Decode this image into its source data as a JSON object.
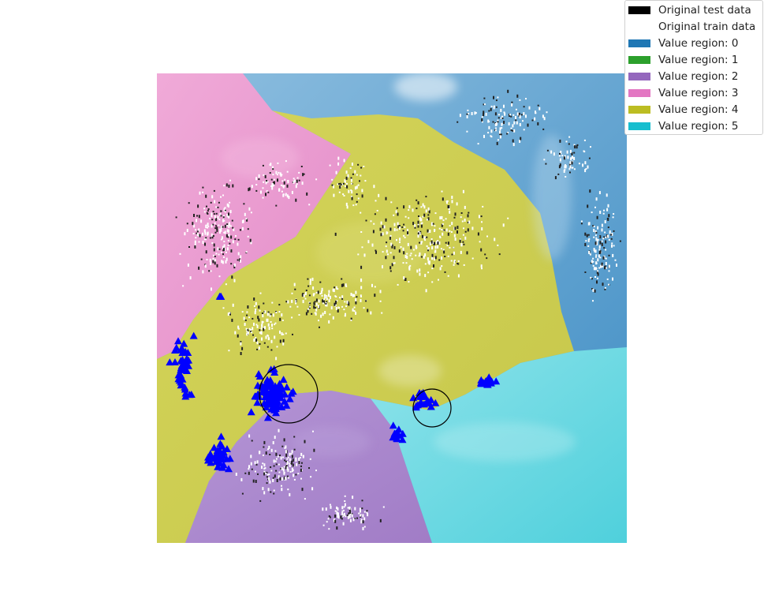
{
  "chart_data": {
    "type": "scatter",
    "title": "",
    "xlabel": "",
    "ylabel": "",
    "grid": false,
    "axes_visible": false,
    "legend_position": "top-right",
    "legend": [
      {
        "label": "Original test data",
        "color": "#000000"
      },
      {
        "label": "Original train data",
        "color": "#ffffff"
      },
      {
        "label": "Value region: 0",
        "color": "#1f77b4"
      },
      {
        "label": "Value region: 1",
        "color": "#2ca02c"
      },
      {
        "label": "Value region: 2",
        "color": "#9467bd"
      },
      {
        "label": "Value region: 3",
        "color": "#e377c2"
      },
      {
        "label": "Value region: 4",
        "color": "#bcbd22"
      },
      {
        "label": "Value region: 5",
        "color": "#17becf"
      }
    ],
    "regions_present": [
      0,
      2,
      3,
      4,
      5
    ],
    "marker_series": {
      "name": "",
      "marker": "triangle",
      "color": "#0000ff"
    },
    "circles": 2
  }
}
